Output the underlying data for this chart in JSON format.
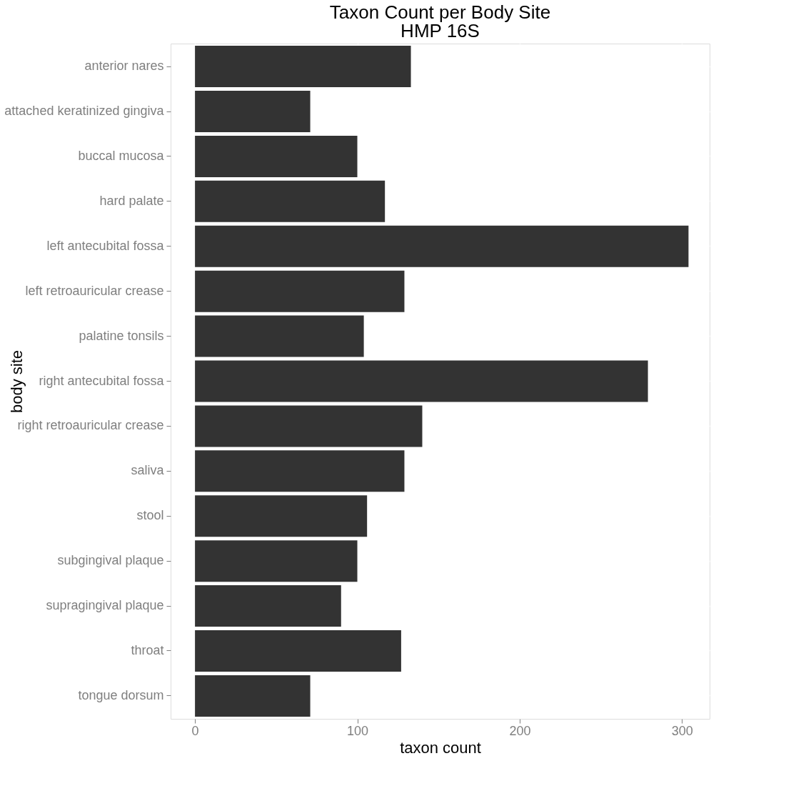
{
  "chart_data": {
    "type": "bar",
    "orientation": "horizontal",
    "title": "Taxon Count per Body Site",
    "subtitle": "HMP 16S",
    "xlabel": "taxon count",
    "ylabel": "body site",
    "categories": [
      "anterior nares",
      "attached keratinized gingiva",
      "buccal mucosa",
      "hard palate",
      "left antecubital fossa",
      "left retroauricular crease",
      "palatine tonsils",
      "right antecubital fossa",
      "right retroauricular crease",
      "saliva",
      "stool",
      "subgingival plaque",
      "supragingival plaque",
      "throat",
      "tongue dorsum"
    ],
    "values": [
      133,
      71,
      100,
      117,
      304,
      129,
      104,
      279,
      140,
      129,
      106,
      100,
      90,
      127,
      71
    ],
    "color": "#333333",
    "xlim": [
      -15,
      317
    ],
    "xticks": [
      0,
      100,
      200,
      300
    ],
    "grid": true
  }
}
